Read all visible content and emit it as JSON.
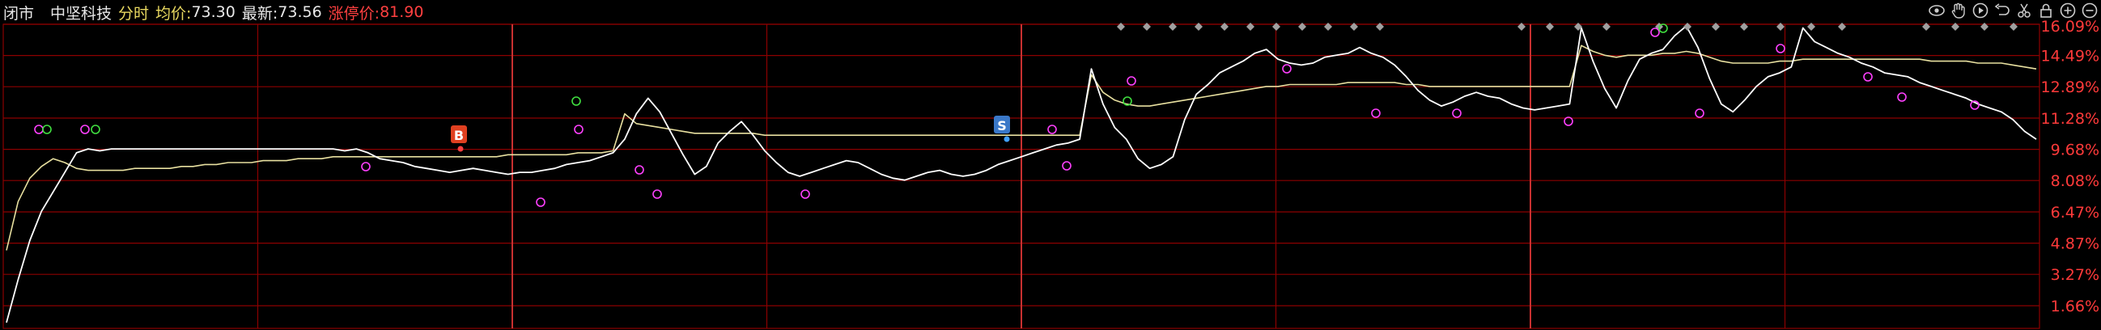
{
  "header": {
    "status": "闭市",
    "stock_name": "中坚科技",
    "mode": "分时",
    "avg_label": "均价:",
    "avg_value": "73.30",
    "last_label": "最新:",
    "last_value": "73.56",
    "limit_label": "涨停价:",
    "limit_value": "81.90"
  },
  "toolbar": {
    "icons": [
      "eye-icon",
      "hand-icon",
      "play-icon",
      "undo-icon",
      "scissors-icon",
      "lock-icon",
      "zoom-in-icon",
      "zoom-out-icon"
    ]
  },
  "colors": {
    "background": "#000000",
    "grid": "#8c0000",
    "day_divider": "#c83030",
    "price_line": "#ffffff",
    "avg_line": "#e8e0a0",
    "axis_label": "#ff3a3a",
    "marker_magenta": "#ff40ff",
    "marker_green": "#40e040",
    "buy_badge": "#e04020",
    "sell_badge": "#3a78c8",
    "diamond": "#a0a0a0"
  },
  "markers": {
    "buy": "B",
    "sell": "S"
  },
  "chart_data": {
    "type": "line",
    "y_axis_ticks": [
      "16.09%",
      "14.49%",
      "12.89%",
      "11.28%",
      "9.68%",
      "8.08%",
      "6.47%",
      "4.87%",
      "3.27%",
      "1.66%"
    ],
    "ylim": [
      0.5,
      16.09
    ],
    "days": 4,
    "grid": true,
    "series": [
      {
        "key": "price",
        "values": [
          0.8,
          3,
          5,
          6.5,
          7.5,
          8.5,
          9.5,
          9.7,
          9.6,
          9.7,
          9.7,
          9.7,
          9.7,
          9.7,
          9.7,
          9.7,
          9.7,
          9.7,
          9.7,
          9.7,
          9.7,
          9.7,
          9.7,
          9.7,
          9.7,
          9.7,
          9.7,
          9.7,
          9.7,
          9.6,
          9.7,
          9.5,
          9.2,
          9.1,
          9.0,
          8.8,
          8.7,
          8.6,
          8.5,
          8.6,
          8.7,
          8.6,
          8.5,
          8.4,
          8.5,
          8.5,
          8.6,
          8.7,
          8.9,
          9.0,
          9.1,
          9.3,
          9.5,
          10.2,
          11.5,
          12.3,
          11.6,
          10.5,
          9.4,
          8.4,
          8.8,
          10.0,
          10.6,
          11.1,
          10.4,
          9.6,
          9.0,
          8.5,
          8.3,
          8.5,
          8.7,
          8.9,
          9.1,
          9.0,
          8.7,
          8.4,
          8.2,
          8.1,
          8.3,
          8.5,
          8.6,
          8.4,
          8.3,
          8.4,
          8.6,
          8.9,
          9.1,
          9.3,
          9.5,
          9.7,
          9.9,
          10.0,
          10.2,
          13.8,
          12.0,
          10.8,
          10.2,
          9.2,
          8.7,
          8.9,
          9.3,
          11.2,
          12.5,
          13.0,
          13.6,
          13.9,
          14.2,
          14.6,
          14.8,
          14.3,
          14.1,
          14.0,
          14.1,
          14.4,
          14.5,
          14.6,
          14.9,
          14.6,
          14.4,
          14.0,
          13.4,
          12.7,
          12.2,
          11.9,
          12.1,
          12.4,
          12.6,
          12.4,
          12.3,
          12.0,
          11.8,
          11.7,
          11.8,
          11.9,
          12.0,
          15.9,
          14.2,
          12.8,
          11.8,
          13.2,
          14.3,
          14.6,
          14.8,
          15.5,
          16.0,
          14.9,
          13.3,
          12.0,
          11.6,
          12.2,
          12.9,
          13.4,
          13.6,
          13.9,
          15.9,
          15.2,
          14.9,
          14.6,
          14.4,
          14.1,
          13.9,
          13.6,
          13.5,
          13.4,
          13.1,
          12.9,
          12.7,
          12.5,
          12.3,
          12.0,
          11.8,
          11.6,
          11.2,
          10.6,
          10.2
        ],
        "unit": "%"
      },
      {
        "key": "average",
        "values": [
          4.5,
          7,
          8.2,
          8.8,
          9.2,
          9.0,
          8.7,
          8.6,
          8.6,
          8.6,
          8.6,
          8.7,
          8.7,
          8.7,
          8.7,
          8.8,
          8.8,
          8.9,
          8.9,
          9.0,
          9.0,
          9.0,
          9.1,
          9.1,
          9.1,
          9.2,
          9.2,
          9.2,
          9.3,
          9.3,
          9.3,
          9.3,
          9.3,
          9.3,
          9.3,
          9.3,
          9.3,
          9.3,
          9.3,
          9.3,
          9.3,
          9.3,
          9.3,
          9.4,
          9.4,
          9.4,
          9.4,
          9.4,
          9.4,
          9.5,
          9.5,
          9.5,
          9.6,
          11.5,
          11.0,
          10.9,
          10.8,
          10.7,
          10.6,
          10.5,
          10.5,
          10.5,
          10.5,
          10.5,
          10.5,
          10.4,
          10.4,
          10.4,
          10.4,
          10.4,
          10.4,
          10.4,
          10.4,
          10.4,
          10.4,
          10.4,
          10.4,
          10.4,
          10.4,
          10.4,
          10.4,
          10.4,
          10.4,
          10.4,
          10.4,
          10.4,
          10.4,
          10.4,
          10.4,
          10.4,
          10.4,
          10.4,
          10.4,
          13.5,
          12.6,
          12.2,
          12.0,
          11.9,
          11.9,
          12.0,
          12.1,
          12.2,
          12.3,
          12.4,
          12.5,
          12.6,
          12.7,
          12.8,
          12.9,
          12.9,
          13.0,
          13.0,
          13.0,
          13.0,
          13.0,
          13.1,
          13.1,
          13.1,
          13.1,
          13.1,
          13.0,
          13.0,
          12.9,
          12.9,
          12.9,
          12.9,
          12.9,
          12.9,
          12.9,
          12.9,
          12.9,
          12.9,
          12.9,
          12.9,
          12.9,
          15.0,
          14.7,
          14.5,
          14.4,
          14.5,
          14.5,
          14.5,
          14.6,
          14.6,
          14.7,
          14.6,
          14.4,
          14.2,
          14.1,
          14.1,
          14.1,
          14.1,
          14.2,
          14.2,
          14.3,
          14.3,
          14.3,
          14.3,
          14.3,
          14.3,
          14.3,
          14.3,
          14.3,
          14.3,
          14.3,
          14.2,
          14.2,
          14.2,
          14.2,
          14.1,
          14.1,
          14.1,
          14.0,
          13.9,
          13.8
        ],
        "unit": "%"
      }
    ],
    "annotations": [
      {
        "label": "B",
        "day_fraction": 0.235,
        "y": 9.9
      },
      {
        "label": "S",
        "day_fraction": 0.48,
        "y": 9.9
      }
    ]
  }
}
